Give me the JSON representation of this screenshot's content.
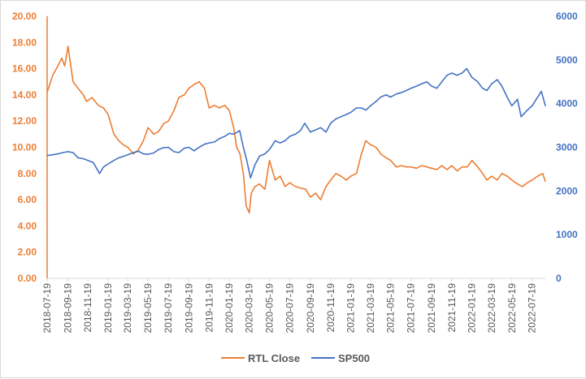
{
  "chart_data": {
    "type": "line",
    "title": "",
    "xlabel": "",
    "ylabel": "",
    "ylim": [
      0,
      20
    ],
    "y2lim": [
      0,
      6000
    ],
    "y_ticks": [
      "0.00",
      "2.00",
      "4.00",
      "6.00",
      "8.00",
      "10.00",
      "12.00",
      "14.00",
      "16.00",
      "18.00",
      "20.00"
    ],
    "y2_ticks": [
      "0",
      "1000",
      "2000",
      "3000",
      "4000",
      "5000",
      "6000"
    ],
    "x_ticks": [
      "2018-07-19",
      "2018-09-19",
      "2018-11-19",
      "2019-01-19",
      "2019-03-19",
      "2019-05-19",
      "2019-07-19",
      "2019-09-19",
      "2019-11-19",
      "2020-01-19",
      "2020-03-19",
      "2020-05-19",
      "2020-07-19",
      "2020-09-19",
      "2020-11-19",
      "2021-01-19",
      "2021-03-19",
      "2021-05-19",
      "2021-07-19",
      "2021-09-19",
      "2021-11-19",
      "2022-01-19",
      "2022-03-19",
      "2022-05-19",
      "2022-07-19"
    ],
    "legend_position": "bottom",
    "grid": false,
    "series": [
      {
        "name": "RTL Close",
        "axis": "left",
        "color": "#ED7D31",
        "x": [
          "2018-07-19",
          "2018-08-05",
          "2018-08-20",
          "2018-09-01",
          "2018-09-10",
          "2018-09-20",
          "2018-10-05",
          "2018-10-20",
          "2018-11-05",
          "2018-11-15",
          "2018-12-01",
          "2018-12-20",
          "2019-01-05",
          "2019-01-19",
          "2019-02-05",
          "2019-02-20",
          "2019-03-05",
          "2019-03-19",
          "2019-04-05",
          "2019-04-20",
          "2019-05-05",
          "2019-05-19",
          "2019-06-05",
          "2019-06-20",
          "2019-07-05",
          "2019-07-19",
          "2019-08-05",
          "2019-08-20",
          "2019-09-05",
          "2019-09-19",
          "2019-10-05",
          "2019-10-20",
          "2019-11-05",
          "2019-11-19",
          "2019-12-05",
          "2019-12-20",
          "2020-01-05",
          "2020-01-19",
          "2020-02-01",
          "2020-02-10",
          "2020-02-20",
          "2020-03-01",
          "2020-03-10",
          "2020-03-19",
          "2020-03-25",
          "2020-04-05",
          "2020-04-19",
          "2020-05-05",
          "2020-05-19",
          "2020-06-05",
          "2020-06-20",
          "2020-07-05",
          "2020-07-19",
          "2020-08-05",
          "2020-08-20",
          "2020-09-05",
          "2020-09-19",
          "2020-10-05",
          "2020-10-20",
          "2020-11-05",
          "2020-11-19",
          "2020-12-05",
          "2020-12-20",
          "2021-01-05",
          "2021-01-19",
          "2021-02-05",
          "2021-02-20",
          "2021-03-05",
          "2021-03-19",
          "2021-04-05",
          "2021-04-19",
          "2021-05-05",
          "2021-05-19",
          "2021-06-05",
          "2021-06-20",
          "2021-07-05",
          "2021-07-19",
          "2021-08-05",
          "2021-08-20",
          "2021-09-05",
          "2021-09-19",
          "2021-10-05",
          "2021-10-20",
          "2021-11-05",
          "2021-11-19",
          "2021-12-05",
          "2021-12-20",
          "2022-01-05",
          "2022-01-19",
          "2022-02-05",
          "2022-02-20",
          "2022-03-05",
          "2022-03-19",
          "2022-04-05",
          "2022-04-19",
          "2022-05-05",
          "2022-05-19",
          "2022-06-05",
          "2022-06-20",
          "2022-07-05",
          "2022-07-19",
          "2022-08-05",
          "2022-08-20",
          "2022-08-28"
        ],
        "values": [
          14.2,
          15.5,
          16.2,
          16.8,
          16.2,
          17.7,
          15.0,
          14.5,
          14.0,
          13.5,
          13.8,
          13.2,
          13.0,
          12.5,
          11.0,
          10.5,
          10.2,
          10.0,
          9.5,
          9.8,
          10.5,
          11.5,
          11.0,
          11.2,
          11.8,
          12.0,
          12.8,
          13.8,
          14.0,
          14.5,
          14.8,
          15.0,
          14.5,
          13.0,
          13.2,
          13.0,
          13.2,
          12.8,
          11.5,
          10.0,
          9.5,
          8.0,
          5.5,
          5.0,
          6.5,
          7.0,
          7.2,
          6.8,
          9.0,
          7.5,
          7.8,
          7.0,
          7.3,
          7.0,
          6.9,
          6.8,
          6.2,
          6.5,
          6.0,
          7.0,
          7.5,
          8.0,
          7.8,
          7.5,
          7.8,
          8.0,
          9.5,
          10.5,
          10.2,
          10.0,
          9.5,
          9.2,
          9.0,
          8.5,
          8.6,
          8.5,
          8.5,
          8.4,
          8.6,
          8.5,
          8.4,
          8.3,
          8.6,
          8.3,
          8.6,
          8.2,
          8.5,
          8.5,
          9.0,
          8.5,
          8.0,
          7.5,
          7.8,
          7.5,
          8.0,
          7.8,
          7.5,
          7.2,
          7.0,
          7.3,
          7.5,
          7.8,
          8.0,
          7.4
        ]
      },
      {
        "name": "SP500",
        "axis": "right",
        "color": "#4472C4",
        "x": [
          "2018-07-19",
          "2018-08-05",
          "2018-08-20",
          "2018-09-05",
          "2018-09-19",
          "2018-10-05",
          "2018-10-20",
          "2018-11-05",
          "2018-11-19",
          "2018-12-05",
          "2018-12-24",
          "2019-01-05",
          "2019-01-19",
          "2019-02-05",
          "2019-02-20",
          "2019-03-05",
          "2019-03-19",
          "2019-04-05",
          "2019-04-20",
          "2019-05-05",
          "2019-05-19",
          "2019-06-05",
          "2019-06-20",
          "2019-07-05",
          "2019-07-19",
          "2019-08-05",
          "2019-08-20",
          "2019-09-05",
          "2019-09-19",
          "2019-10-05",
          "2019-10-20",
          "2019-11-05",
          "2019-11-19",
          "2019-12-05",
          "2019-12-20",
          "2020-01-05",
          "2020-01-19",
          "2020-02-01",
          "2020-02-19",
          "2020-03-01",
          "2020-03-10",
          "2020-03-23",
          "2020-04-05",
          "2020-04-19",
          "2020-05-05",
          "2020-05-19",
          "2020-06-05",
          "2020-06-20",
          "2020-07-05",
          "2020-07-19",
          "2020-08-05",
          "2020-08-20",
          "2020-09-02",
          "2020-09-19",
          "2020-10-05",
          "2020-10-20",
          "2020-11-05",
          "2020-11-19",
          "2020-12-05",
          "2020-12-20",
          "2021-01-05",
          "2021-01-19",
          "2021-02-05",
          "2021-02-20",
          "2021-03-05",
          "2021-03-19",
          "2021-04-05",
          "2021-04-19",
          "2021-05-05",
          "2021-05-19",
          "2021-06-05",
          "2021-06-20",
          "2021-07-05",
          "2021-07-19",
          "2021-08-05",
          "2021-08-20",
          "2021-09-05",
          "2021-09-19",
          "2021-10-05",
          "2021-10-20",
          "2021-11-05",
          "2021-11-19",
          "2021-12-05",
          "2021-12-20",
          "2022-01-03",
          "2022-01-19",
          "2022-02-05",
          "2022-02-20",
          "2022-03-05",
          "2022-03-19",
          "2022-04-05",
          "2022-04-19",
          "2022-05-05",
          "2022-05-19",
          "2022-06-05",
          "2022-06-16",
          "2022-07-05",
          "2022-07-19",
          "2022-08-05",
          "2022-08-16",
          "2022-08-28"
        ],
        "values": [
          2810,
          2830,
          2850,
          2880,
          2900,
          2880,
          2760,
          2740,
          2700,
          2650,
          2400,
          2550,
          2620,
          2700,
          2760,
          2790,
          2830,
          2880,
          2910,
          2850,
          2840,
          2870,
          2950,
          2990,
          3000,
          2900,
          2880,
          2980,
          3000,
          2920,
          3000,
          3070,
          3100,
          3120,
          3200,
          3250,
          3320,
          3300,
          3380,
          3000,
          2750,
          2300,
          2600,
          2800,
          2850,
          2950,
          3150,
          3100,
          3150,
          3250,
          3300,
          3380,
          3550,
          3350,
          3400,
          3450,
          3350,
          3550,
          3650,
          3700,
          3750,
          3800,
          3900,
          3900,
          3850,
          3950,
          4050,
          4150,
          4200,
          4150,
          4220,
          4250,
          4300,
          4350,
          4400,
          4450,
          4500,
          4400,
          4350,
          4500,
          4650,
          4700,
          4650,
          4700,
          4800,
          4600,
          4500,
          4350,
          4300,
          4450,
          4550,
          4400,
          4150,
          3950,
          4100,
          3700,
          3850,
          3950,
          4150,
          4280,
          3950
        ]
      }
    ]
  },
  "legend": {
    "rtl_label": "RTL Close",
    "sp_label": "SP500"
  }
}
